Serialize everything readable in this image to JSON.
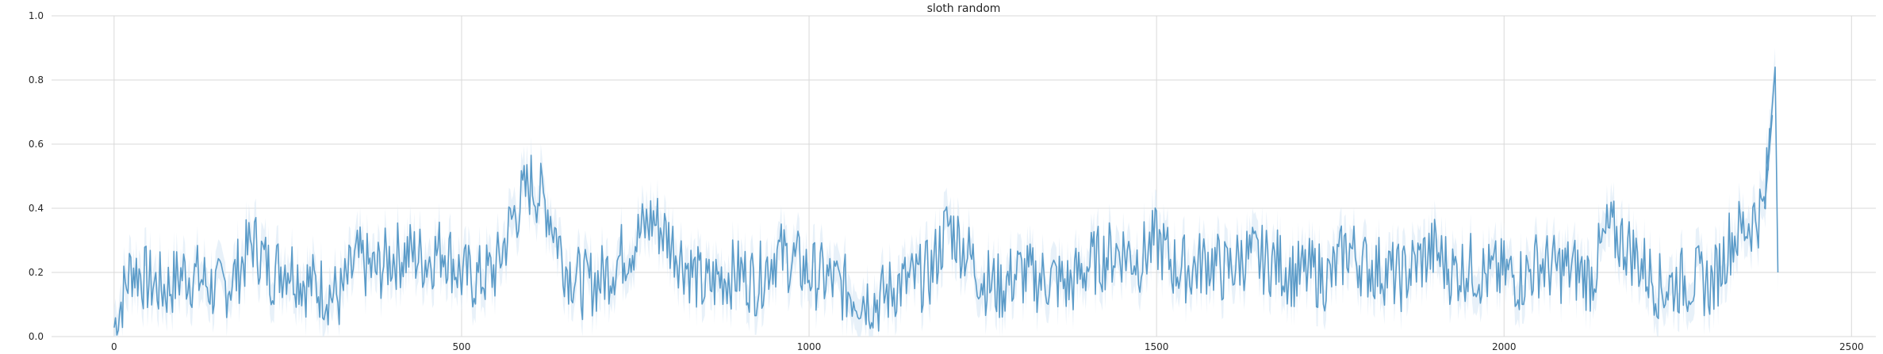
{
  "chart_data": {
    "type": "line",
    "title": "sloth random",
    "xlabel": "",
    "ylabel": "",
    "xlim": [
      -90,
      2535
    ],
    "ylim": [
      0,
      1.0
    ],
    "x_ticks": [
      0,
      500,
      1000,
      1500,
      2000,
      2500
    ],
    "y_ticks": [
      0.0,
      0.2,
      0.4,
      0.6,
      0.8,
      1.0
    ],
    "x_tick_labels": [
      "0",
      "500",
      "1000",
      "1500",
      "2000",
      "2500"
    ],
    "y_tick_labels": [
      "0.0",
      "0.2",
      "0.4",
      "0.6",
      "0.8",
      "1.0"
    ],
    "grid": true,
    "legend": "none",
    "series": [
      {
        "color": "#5b9bc8",
        "band_color": "#d9e8f5",
        "x": [
          0,
          25,
          50,
          75,
          100,
          125,
          150,
          175,
          200,
          225,
          250,
          275,
          300,
          325,
          350,
          375,
          400,
          425,
          450,
          475,
          500,
          525,
          550,
          575,
          600,
          625,
          650,
          675,
          700,
          725,
          750,
          775,
          800,
          825,
          850,
          875,
          900,
          925,
          950,
          975,
          1000,
          1025,
          1050,
          1075,
          1100,
          1125,
          1150,
          1175,
          1200,
          1225,
          1250,
          1275,
          1300,
          1325,
          1350,
          1375,
          1400,
          1425,
          1450,
          1475,
          1500,
          1525,
          1550,
          1575,
          1600,
          1625,
          1650,
          1675,
          1700,
          1725,
          1750,
          1775,
          1800,
          1825,
          1850,
          1875,
          1900,
          1925,
          1950,
          1975,
          2000,
          2025,
          2050,
          2075,
          2100,
          2125,
          2150,
          2175,
          2200,
          2225,
          2250,
          2275,
          2300,
          2325,
          2350,
          2375,
          2390,
          2394
        ],
        "y": [
          0.03,
          0.22,
          0.17,
          0.15,
          0.2,
          0.18,
          0.14,
          0.19,
          0.3,
          0.2,
          0.23,
          0.17,
          0.15,
          0.12,
          0.24,
          0.2,
          0.25,
          0.26,
          0.24,
          0.28,
          0.19,
          0.18,
          0.21,
          0.38,
          0.48,
          0.4,
          0.22,
          0.16,
          0.18,
          0.24,
          0.3,
          0.37,
          0.3,
          0.22,
          0.15,
          0.19,
          0.2,
          0.17,
          0.26,
          0.24,
          0.2,
          0.18,
          0.15,
          0.13,
          0.11,
          0.16,
          0.17,
          0.2,
          0.35,
          0.27,
          0.18,
          0.15,
          0.2,
          0.18,
          0.18,
          0.16,
          0.22,
          0.25,
          0.27,
          0.24,
          0.3,
          0.22,
          0.21,
          0.24,
          0.2,
          0.25,
          0.24,
          0.23,
          0.19,
          0.2,
          0.18,
          0.28,
          0.22,
          0.21,
          0.18,
          0.23,
          0.27,
          0.2,
          0.22,
          0.19,
          0.2,
          0.18,
          0.23,
          0.21,
          0.21,
          0.18,
          0.33,
          0.29,
          0.22,
          0.15,
          0.17,
          0.18,
          0.16,
          0.3,
          0.35,
          0.4,
          0.84,
          0.2
        ]
      }
    ]
  }
}
